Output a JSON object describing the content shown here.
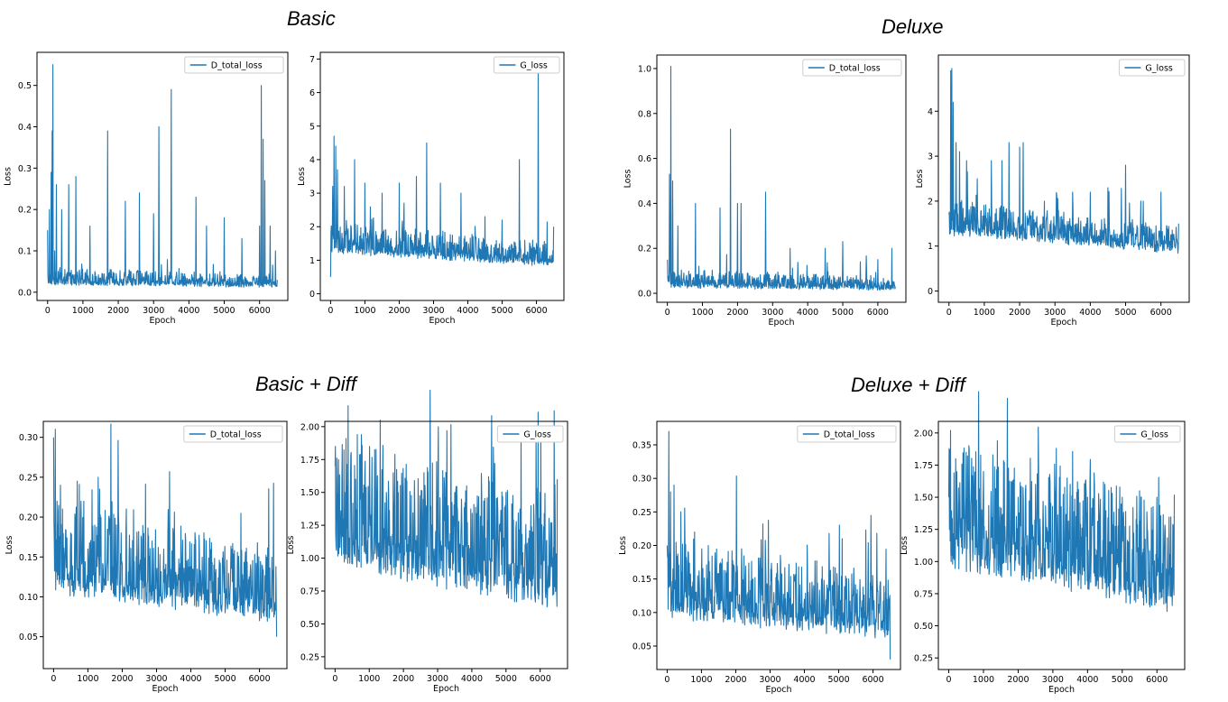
{
  "sections": [
    {
      "title": "Basic"
    },
    {
      "title": "Deluxe"
    },
    {
      "title": "Basic + Diff"
    },
    {
      "title": "Deluxe + Diff"
    }
  ],
  "colors": {
    "series": "#1f77b4"
  },
  "chart_data": [
    {
      "type": "line",
      "section": "Basic",
      "xlabel": "Epoch",
      "ylabel": "Loss",
      "xlim": [
        -300,
        6800
      ],
      "ylim": [
        -0.02,
        0.58
      ],
      "xticks": [
        0,
        1000,
        2000,
        3000,
        4000,
        5000,
        6000
      ],
      "yticks": [
        0.0,
        0.1,
        0.2,
        0.3,
        0.4,
        0.5
      ],
      "ytick_labels": [
        "0.0",
        "0.1",
        "0.2",
        "0.3",
        "0.4",
        "0.5"
      ],
      "legend_position": "top-right",
      "series": [
        {
          "name": "D_total_loss",
          "baseline": 0.02,
          "noise": 0.03,
          "x": [
            0,
            50,
            100,
            130,
            150,
            200,
            250,
            400,
            600,
            800,
            1200,
            1700,
            2200,
            2600,
            3000,
            3150,
            3500,
            4200,
            4500,
            5000,
            5500,
            6000,
            6050,
            6100,
            6150,
            6300,
            6450,
            6500
          ],
          "y": [
            0.15,
            0.2,
            0.29,
            0.39,
            0.55,
            0.1,
            0.26,
            0.2,
            0.26,
            0.28,
            0.16,
            0.39,
            0.22,
            0.24,
            0.19,
            0.4,
            0.49,
            0.23,
            0.16,
            0.18,
            0.13,
            0.16,
            0.5,
            0.37,
            0.27,
            0.16,
            0.1,
            0.03
          ]
        }
      ]
    },
    {
      "type": "line",
      "section": "Basic",
      "xlabel": "Epoch",
      "ylabel": "Loss",
      "xlim": [
        -300,
        6800
      ],
      "ylim": [
        -0.2,
        7.2
      ],
      "xticks": [
        0,
        1000,
        2000,
        3000,
        4000,
        5000,
        6000
      ],
      "yticks": [
        0,
        1,
        2,
        3,
        4,
        5,
        6,
        7
      ],
      "ytick_labels": [
        "0",
        "1",
        "2",
        "3",
        "4",
        "5",
        "6",
        "7"
      ],
      "legend_position": "top-right",
      "series": [
        {
          "name": "G_loss",
          "baseline": 1.1,
          "noise": 0.7,
          "x": [
            0,
            60,
            100,
            150,
            200,
            400,
            700,
            1000,
            1500,
            2000,
            2500,
            2800,
            3200,
            3800,
            4500,
            5000,
            5500,
            6000,
            6050,
            6500
          ],
          "y": [
            0.5,
            3.2,
            4.7,
            4.4,
            3.7,
            3.2,
            4.0,
            3.3,
            3.0,
            3.3,
            3.5,
            4.5,
            3.3,
            3.0,
            2.3,
            2.2,
            4.0,
            1.5,
            6.9,
            2.0
          ]
        }
      ]
    },
    {
      "type": "line",
      "section": "Deluxe",
      "xlabel": "Epoch",
      "ylabel": "Loss",
      "xlim": [
        -300,
        6800
      ],
      "ylim": [
        -0.04,
        1.06
      ],
      "xticks": [
        0,
        1000,
        2000,
        3000,
        4000,
        5000,
        6000
      ],
      "yticks": [
        0.0,
        0.2,
        0.4,
        0.6,
        0.8,
        1.0
      ],
      "ytick_labels": [
        "0.0",
        "0.2",
        "0.4",
        "0.6",
        "0.8",
        "1.0"
      ],
      "legend_position": "top-right",
      "series": [
        {
          "name": "D_total_loss",
          "baseline": 0.03,
          "noise": 0.06,
          "x": [
            0,
            60,
            100,
            150,
            300,
            800,
            1500,
            1800,
            2000,
            2100,
            2800,
            3500,
            4500,
            5000,
            5500,
            6000,
            6400,
            6500
          ],
          "y": [
            0.15,
            0.53,
            1.01,
            0.5,
            0.3,
            0.4,
            0.38,
            0.73,
            0.4,
            0.4,
            0.45,
            0.2,
            0.2,
            0.23,
            0.14,
            0.15,
            0.2,
            0.03
          ]
        }
      ]
    },
    {
      "type": "line",
      "section": "Deluxe",
      "xlabel": "Epoch",
      "ylabel": "Loss",
      "xlim": [
        -300,
        6800
      ],
      "ylim": [
        -0.25,
        5.25
      ],
      "xticks": [
        0,
        1000,
        2000,
        3000,
        4000,
        5000,
        6000
      ],
      "yticks": [
        0,
        1,
        2,
        3,
        4
      ],
      "ytick_labels": [
        "0",
        "1",
        "2",
        "3",
        "4"
      ],
      "legend_position": "top-right",
      "series": [
        {
          "name": "G_loss",
          "baseline": 1.1,
          "noise": 0.6,
          "x": [
            0,
            50,
            80,
            120,
            200,
            300,
            500,
            800,
            1200,
            1500,
            1700,
            2000,
            2100,
            2700,
            3500,
            4000,
            4500,
            5000,
            5500,
            6000,
            6500
          ],
          "y": [
            1.7,
            4.9,
            4.95,
            4.2,
            3.3,
            3.1,
            2.9,
            2.5,
            2.9,
            2.9,
            3.3,
            3.2,
            3.3,
            2.0,
            2.2,
            2.2,
            2.3,
            2.8,
            2.0,
            2.2,
            1.5
          ]
        }
      ]
    },
    {
      "type": "line",
      "section": "Basic + Diff",
      "xlabel": "Epoch",
      "ylabel": "Loss",
      "xlim": [
        -300,
        6800
      ],
      "ylim": [
        0.01,
        0.32
      ],
      "xticks": [
        0,
        1000,
        2000,
        3000,
        4000,
        5000,
        6000
      ],
      "yticks": [
        0.05,
        0.1,
        0.15,
        0.2,
        0.25,
        0.3
      ],
      "ytick_labels": [
        "0.05",
        "0.10",
        "0.15",
        "0.20",
        "0.25",
        "0.30"
      ],
      "legend_position": "top-right",
      "series": [
        {
          "name": "D_total_loss",
          "baseline": 0.1,
          "noise": 0.09,
          "x": [
            0,
            50,
            100,
            200,
            500,
            800,
            1000,
            1300,
            1600,
            2000,
            2500,
            3000,
            3500,
            4000,
            4500,
            5000,
            5500,
            6000,
            6500
          ],
          "y": [
            0.3,
            0.31,
            0.22,
            0.24,
            0.18,
            0.22,
            0.16,
            0.25,
            0.19,
            0.14,
            0.13,
            0.12,
            0.11,
            0.1,
            0.09,
            0.08,
            0.08,
            0.07,
            0.05
          ]
        }
      ]
    },
    {
      "type": "line",
      "section": "Basic + Diff",
      "xlabel": "Epoch",
      "ylabel": "Loss",
      "xlim": [
        -300,
        6800
      ],
      "ylim": [
        0.16,
        2.04
      ],
      "xticks": [
        0,
        1000,
        2000,
        3000,
        4000,
        5000,
        6000
      ],
      "yticks": [
        0.25,
        0.5,
        0.75,
        1.0,
        1.25,
        1.5,
        1.75,
        2.0
      ],
      "ytick_labels": [
        "0.25",
        "0.50",
        "0.75",
        "1.00",
        "1.25",
        "1.50",
        "1.75",
        "2.00"
      ],
      "legend_position": "top-right",
      "series": [
        {
          "name": "G_loss",
          "baseline": 0.9,
          "noise": 0.8,
          "x": [
            0,
            100,
            300,
            600,
            650,
            1000,
            1500,
            2000,
            2600,
            3000,
            3500,
            4500,
            5000,
            6000,
            6500
          ],
          "y": [
            1.7,
            1.75,
            1.5,
            1.6,
            1.94,
            1.5,
            1.5,
            1.5,
            1.65,
            1.3,
            1.5,
            1.45,
            1.5,
            1.5,
            1.6
          ]
        }
      ]
    },
    {
      "type": "line",
      "section": "Deluxe + Diff",
      "xlabel": "Epoch",
      "ylabel": "Loss",
      "xlim": [
        -300,
        6800
      ],
      "ylim": [
        0.015,
        0.385
      ],
      "xticks": [
        0,
        1000,
        2000,
        3000,
        4000,
        5000,
        6000
      ],
      "yticks": [
        0.05,
        0.1,
        0.15,
        0.2,
        0.25,
        0.3,
        0.35
      ],
      "ytick_labels": [
        "0.05",
        "0.10",
        "0.15",
        "0.20",
        "0.25",
        "0.30",
        "0.35"
      ],
      "legend_position": "top-right",
      "series": [
        {
          "name": "D_total_loss",
          "baseline": 0.09,
          "noise": 0.09,
          "x": [
            0,
            50,
            100,
            200,
            400,
            800,
            1200,
            1600,
            2000,
            2500,
            3000,
            3500,
            4000,
            4500,
            5100,
            5500,
            6000,
            6400,
            6500
          ],
          "y": [
            0.2,
            0.37,
            0.28,
            0.29,
            0.25,
            0.22,
            0.2,
            0.18,
            0.16,
            0.15,
            0.14,
            0.13,
            0.12,
            0.15,
            0.21,
            0.1,
            0.13,
            0.12,
            0.03
          ]
        }
      ]
    },
    {
      "type": "line",
      "section": "Deluxe + Diff",
      "xlabel": "Epoch",
      "ylabel": "Loss",
      "xlim": [
        -300,
        6800
      ],
      "ylim": [
        0.16,
        2.09
      ],
      "xticks": [
        0,
        1000,
        2000,
        3000,
        4000,
        5000,
        6000
      ],
      "yticks": [
        0.25,
        0.5,
        0.75,
        1.0,
        1.25,
        1.5,
        1.75,
        2.0
      ],
      "ytick_labels": [
        "0.25",
        "0.50",
        "0.75",
        "1.00",
        "1.25",
        "1.50",
        "1.75",
        "2.00"
      ],
      "legend_position": "top-right",
      "series": [
        {
          "name": "G_loss",
          "baseline": 0.9,
          "noise": 0.8,
          "x": [
            0,
            50,
            200,
            500,
            1000,
            1400,
            2000,
            2500,
            3100,
            3500,
            4000,
            4500,
            5000,
            5500,
            6000,
            6500
          ],
          "y": [
            1.5,
            2.02,
            1.8,
            1.85,
            1.7,
            1.94,
            1.5,
            1.6,
            1.88,
            1.6,
            1.5,
            1.6,
            1.5,
            1.55,
            1.5,
            1.52
          ]
        }
      ]
    }
  ]
}
